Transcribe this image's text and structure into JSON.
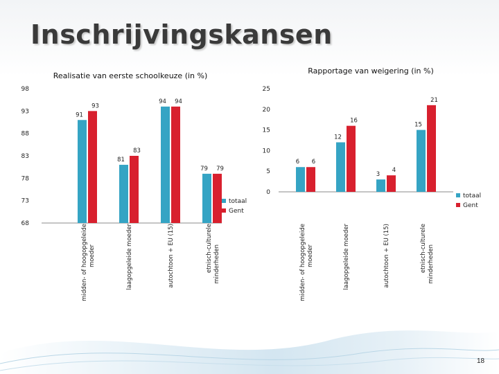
{
  "page": {
    "title": "Inschrijvingskansen",
    "page_number": "18"
  },
  "colors": {
    "totaal": "#35a4c4",
    "gent": "#d8202e"
  },
  "chart_data": [
    {
      "type": "bar",
      "title": "Realisatie van eerste schoolkeuze (in %)",
      "categories": [
        "midden- of hoogopgeleide moeder",
        "laagopgeleide moeder",
        "autochtoon + EU (15)",
        "etnisch-culturele minderheden"
      ],
      "series": [
        {
          "name": "totaal",
          "values": [
            91,
            81,
            94,
            79
          ]
        },
        {
          "name": "Gent",
          "values": [
            93,
            83,
            94,
            79
          ]
        }
      ],
      "ylim": [
        68,
        98
      ],
      "yticks": [
        "98",
        "93",
        "88",
        "83",
        "78",
        "73",
        "68"
      ],
      "legend": "right"
    },
    {
      "type": "bar",
      "title": "Rapportage van weigering (in %)",
      "categories": [
        "midden- of hoogopgeleide moeder",
        "laagopgeleide moeder",
        "autochtoon + EU (15)",
        "etnisch-culturele minderheden"
      ],
      "series": [
        {
          "name": "totaal",
          "values": [
            6,
            12,
            3,
            15
          ]
        },
        {
          "name": "Gent",
          "values": [
            6,
            16,
            4,
            21
          ]
        }
      ],
      "ylim": [
        0,
        25
      ],
      "yticks": [
        "25",
        "20",
        "15",
        "10",
        "5",
        "0"
      ],
      "legend": "right"
    }
  ]
}
